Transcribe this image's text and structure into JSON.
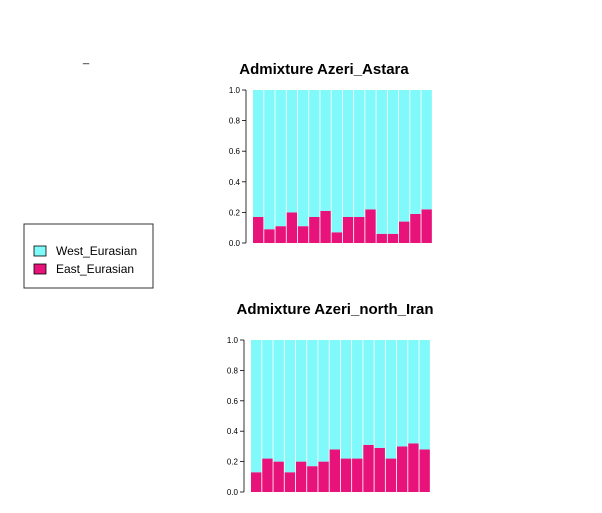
{
  "legend": {
    "dash": "_",
    "items": [
      {
        "label": "West_Eurasian",
        "color": "#7ff9f9"
      },
      {
        "label": "East_Eurasian",
        "color": "#e8137a"
      }
    ]
  },
  "chart_data": [
    {
      "type": "bar",
      "stacked": true,
      "title": "Admixture Azeri_Astara",
      "ylim": [
        0,
        1
      ],
      "yticks": [
        "1.0",
        "0.8",
        "0.6",
        "0.4",
        "0.2",
        "0.0"
      ],
      "series": [
        {
          "name": "West_Eurasian",
          "color": "#7ff9f9",
          "values": [
            0.83,
            0.91,
            0.89,
            0.8,
            0.89,
            0.83,
            0.79,
            0.93,
            0.83,
            0.83,
            0.78,
            0.94,
            0.94,
            0.86,
            0.81,
            0.78
          ]
        },
        {
          "name": "East_Eurasian",
          "color": "#e8137a",
          "values": [
            0.17,
            0.09,
            0.11,
            0.2,
            0.11,
            0.17,
            0.21,
            0.07,
            0.17,
            0.17,
            0.22,
            0.06,
            0.06,
            0.14,
            0.19,
            0.22
          ]
        }
      ]
    },
    {
      "type": "bar",
      "stacked": true,
      "title": "Admixture Azeri_north_Iran",
      "ylim": [
        0,
        1
      ],
      "yticks": [
        "1.0",
        "0.8",
        "0.6",
        "0.4",
        "0.2",
        "0.0"
      ],
      "series": [
        {
          "name": "West_Eurasian",
          "color": "#7ff9f9",
          "values": [
            0.87,
            0.78,
            0.8,
            0.87,
            0.8,
            0.83,
            0.8,
            0.72,
            0.78,
            0.78,
            0.69,
            0.71,
            0.78,
            0.7,
            0.68,
            0.72
          ]
        },
        {
          "name": "East_Eurasian",
          "color": "#e8137a",
          "values": [
            0.13,
            0.22,
            0.2,
            0.13,
            0.2,
            0.17,
            0.2,
            0.28,
            0.22,
            0.22,
            0.31,
            0.29,
            0.22,
            0.3,
            0.32,
            0.28
          ]
        }
      ]
    }
  ]
}
